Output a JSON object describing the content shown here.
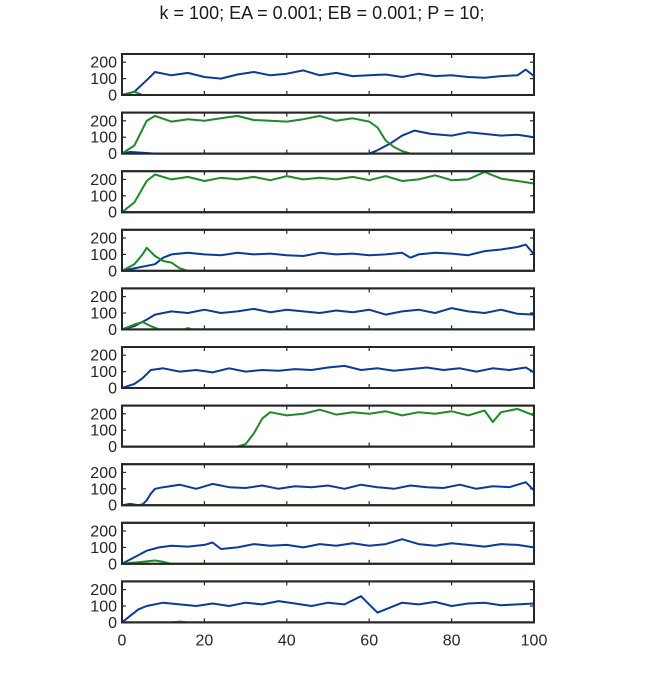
{
  "figure": {
    "title": "k = 100;  EA = 0.001;  EB = 0.001;  P = 10;"
  },
  "chart_data": {
    "type": "line",
    "title": "k = 100;  EA = 0.001;  EB = 0.001;  P = 10;",
    "xlim": [
      0,
      100
    ],
    "ylim": [
      0,
      250
    ],
    "x_ticks": [
      0,
      20,
      40,
      60,
      80,
      100
    ],
    "y_ticks": [
      0,
      100,
      200
    ],
    "grid": false,
    "series_colors": {
      "blue": "#0b3a9c",
      "green": "#1e8a28"
    },
    "panels": [
      {
        "blue": [
          [
            0,
            0
          ],
          [
            3,
            20
          ],
          [
            6,
            90
          ],
          [
            8,
            140
          ],
          [
            12,
            120
          ],
          [
            16,
            135
          ],
          [
            20,
            110
          ],
          [
            24,
            100
          ],
          [
            28,
            125
          ],
          [
            32,
            140
          ],
          [
            36,
            120
          ],
          [
            40,
            130
          ],
          [
            44,
            150
          ],
          [
            48,
            120
          ],
          [
            52,
            135
          ],
          [
            56,
            115
          ],
          [
            60,
            120
          ],
          [
            64,
            125
          ],
          [
            68,
            110
          ],
          [
            72,
            130
          ],
          [
            76,
            115
          ],
          [
            80,
            120
          ],
          [
            84,
            110
          ],
          [
            88,
            105
          ],
          [
            92,
            115
          ],
          [
            96,
            120
          ],
          [
            98,
            155
          ],
          [
            100,
            115
          ]
        ],
        "green": [
          [
            0,
            0
          ],
          [
            3,
            20
          ],
          [
            5,
            0
          ],
          [
            100,
            0
          ]
        ]
      },
      {
        "blue": [
          [
            0,
            0
          ],
          [
            2,
            10
          ],
          [
            5,
            5
          ],
          [
            8,
            0
          ],
          [
            60,
            0
          ],
          [
            62,
            20
          ],
          [
            65,
            60
          ],
          [
            68,
            110
          ],
          [
            71,
            140
          ],
          [
            75,
            120
          ],
          [
            80,
            110
          ],
          [
            84,
            130
          ],
          [
            88,
            120
          ],
          [
            92,
            110
          ],
          [
            96,
            115
          ],
          [
            100,
            100
          ]
        ],
        "green": [
          [
            0,
            0
          ],
          [
            3,
            50
          ],
          [
            6,
            200
          ],
          [
            8,
            230
          ],
          [
            12,
            195
          ],
          [
            16,
            210
          ],
          [
            20,
            200
          ],
          [
            24,
            215
          ],
          [
            28,
            230
          ],
          [
            32,
            205
          ],
          [
            36,
            200
          ],
          [
            40,
            195
          ],
          [
            44,
            210
          ],
          [
            48,
            230
          ],
          [
            52,
            200
          ],
          [
            56,
            215
          ],
          [
            60,
            195
          ],
          [
            62,
            160
          ],
          [
            64,
            80
          ],
          [
            66,
            40
          ],
          [
            68,
            15
          ],
          [
            70,
            0
          ],
          [
            100,
            0
          ]
        ]
      },
      {
        "blue": [
          [
            0,
            0
          ],
          [
            100,
            0
          ]
        ],
        "green": [
          [
            0,
            0
          ],
          [
            3,
            60
          ],
          [
            6,
            190
          ],
          [
            8,
            230
          ],
          [
            12,
            200
          ],
          [
            16,
            215
          ],
          [
            20,
            190
          ],
          [
            24,
            210
          ],
          [
            28,
            200
          ],
          [
            32,
            215
          ],
          [
            36,
            195
          ],
          [
            40,
            220
          ],
          [
            44,
            200
          ],
          [
            48,
            210
          ],
          [
            52,
            200
          ],
          [
            56,
            215
          ],
          [
            60,
            195
          ],
          [
            64,
            220
          ],
          [
            68,
            190
          ],
          [
            72,
            200
          ],
          [
            76,
            225
          ],
          [
            80,
            195
          ],
          [
            84,
            200
          ],
          [
            88,
            245
          ],
          [
            92,
            205
          ],
          [
            96,
            190
          ],
          [
            100,
            175
          ]
        ]
      },
      {
        "blue": [
          [
            0,
            0
          ],
          [
            4,
            20
          ],
          [
            8,
            40
          ],
          [
            10,
            80
          ],
          [
            12,
            100
          ],
          [
            16,
            110
          ],
          [
            20,
            100
          ],
          [
            24,
            95
          ],
          [
            28,
            110
          ],
          [
            32,
            100
          ],
          [
            36,
            105
          ],
          [
            40,
            95
          ],
          [
            44,
            90
          ],
          [
            48,
            110
          ],
          [
            52,
            100
          ],
          [
            56,
            105
          ],
          [
            60,
            95
          ],
          [
            64,
            100
          ],
          [
            68,
            110
          ],
          [
            70,
            80
          ],
          [
            72,
            100
          ],
          [
            76,
            110
          ],
          [
            80,
            105
          ],
          [
            84,
            95
          ],
          [
            88,
            120
          ],
          [
            92,
            130
          ],
          [
            96,
            145
          ],
          [
            98,
            160
          ],
          [
            100,
            100
          ]
        ],
        "green": [
          [
            0,
            0
          ],
          [
            3,
            40
          ],
          [
            5,
            100
          ],
          [
            6,
            140
          ],
          [
            8,
            90
          ],
          [
            10,
            60
          ],
          [
            12,
            50
          ],
          [
            14,
            15
          ],
          [
            16,
            0
          ],
          [
            100,
            0
          ]
        ]
      },
      {
        "blue": [
          [
            0,
            0
          ],
          [
            3,
            20
          ],
          [
            6,
            60
          ],
          [
            8,
            90
          ],
          [
            12,
            110
          ],
          [
            16,
            100
          ],
          [
            20,
            120
          ],
          [
            24,
            100
          ],
          [
            28,
            110
          ],
          [
            32,
            125
          ],
          [
            36,
            105
          ],
          [
            40,
            120
          ],
          [
            44,
            110
          ],
          [
            48,
            100
          ],
          [
            52,
            115
          ],
          [
            56,
            105
          ],
          [
            60,
            120
          ],
          [
            64,
            90
          ],
          [
            68,
            110
          ],
          [
            72,
            120
          ],
          [
            76,
            100
          ],
          [
            80,
            130
          ],
          [
            84,
            110
          ],
          [
            88,
            100
          ],
          [
            92,
            120
          ],
          [
            96,
            95
          ],
          [
            100,
            90
          ]
        ],
        "green": [
          [
            0,
            0
          ],
          [
            3,
            30
          ],
          [
            5,
            45
          ],
          [
            7,
            20
          ],
          [
            9,
            0
          ],
          [
            15,
            0
          ],
          [
            16,
            8
          ],
          [
            17,
            0
          ],
          [
            100,
            0
          ]
        ]
      },
      {
        "blue": [
          [
            0,
            0
          ],
          [
            3,
            25
          ],
          [
            5,
            60
          ],
          [
            7,
            110
          ],
          [
            10,
            120
          ],
          [
            14,
            100
          ],
          [
            18,
            110
          ],
          [
            22,
            95
          ],
          [
            26,
            120
          ],
          [
            30,
            100
          ],
          [
            34,
            110
          ],
          [
            38,
            105
          ],
          [
            42,
            115
          ],
          [
            46,
            110
          ],
          [
            50,
            125
          ],
          [
            54,
            135
          ],
          [
            58,
            110
          ],
          [
            62,
            120
          ],
          [
            66,
            105
          ],
          [
            70,
            115
          ],
          [
            74,
            125
          ],
          [
            78,
            110
          ],
          [
            82,
            120
          ],
          [
            86,
            100
          ],
          [
            90,
            120
          ],
          [
            94,
            110
          ],
          [
            98,
            125
          ],
          [
            100,
            95
          ]
        ],
        "green": [
          [
            0,
            0
          ],
          [
            100,
            0
          ]
        ]
      },
      {
        "blue": [
          [
            0,
            0
          ],
          [
            100,
            0
          ]
        ],
        "green": [
          [
            0,
            0
          ],
          [
            28,
            0
          ],
          [
            30,
            15
          ],
          [
            32,
            80
          ],
          [
            34,
            170
          ],
          [
            36,
            210
          ],
          [
            40,
            190
          ],
          [
            44,
            200
          ],
          [
            48,
            225
          ],
          [
            52,
            195
          ],
          [
            56,
            210
          ],
          [
            60,
            200
          ],
          [
            64,
            215
          ],
          [
            68,
            190
          ],
          [
            72,
            210
          ],
          [
            76,
            200
          ],
          [
            80,
            215
          ],
          [
            84,
            190
          ],
          [
            88,
            220
          ],
          [
            90,
            150
          ],
          [
            92,
            210
          ],
          [
            96,
            230
          ],
          [
            100,
            190
          ]
        ]
      },
      {
        "blue": [
          [
            0,
            0
          ],
          [
            2,
            8
          ],
          [
            4,
            0
          ],
          [
            5,
            5
          ],
          [
            6,
            30
          ],
          [
            7,
            70
          ],
          [
            8,
            100
          ],
          [
            10,
            110
          ],
          [
            14,
            125
          ],
          [
            18,
            100
          ],
          [
            22,
            130
          ],
          [
            26,
            110
          ],
          [
            30,
            105
          ],
          [
            34,
            120
          ],
          [
            38,
            100
          ],
          [
            42,
            115
          ],
          [
            46,
            110
          ],
          [
            50,
            120
          ],
          [
            54,
            100
          ],
          [
            58,
            125
          ],
          [
            62,
            110
          ],
          [
            66,
            100
          ],
          [
            70,
            120
          ],
          [
            74,
            110
          ],
          [
            78,
            105
          ],
          [
            82,
            125
          ],
          [
            86,
            100
          ],
          [
            90,
            115
          ],
          [
            94,
            110
          ],
          [
            98,
            140
          ],
          [
            100,
            90
          ]
        ],
        "green": [
          [
            0,
            0
          ],
          [
            100,
            0
          ]
        ]
      },
      {
        "blue": [
          [
            0,
            0
          ],
          [
            3,
            40
          ],
          [
            6,
            80
          ],
          [
            9,
            100
          ],
          [
            12,
            110
          ],
          [
            16,
            105
          ],
          [
            20,
            115
          ],
          [
            22,
            130
          ],
          [
            24,
            90
          ],
          [
            28,
            100
          ],
          [
            32,
            120
          ],
          [
            36,
            110
          ],
          [
            40,
            115
          ],
          [
            44,
            100
          ],
          [
            48,
            120
          ],
          [
            52,
            110
          ],
          [
            56,
            125
          ],
          [
            60,
            110
          ],
          [
            64,
            120
          ],
          [
            68,
            150
          ],
          [
            72,
            120
          ],
          [
            76,
            110
          ],
          [
            80,
            125
          ],
          [
            84,
            115
          ],
          [
            88,
            105
          ],
          [
            92,
            120
          ],
          [
            96,
            115
          ],
          [
            100,
            100
          ]
        ],
        "green": [
          [
            0,
            0
          ],
          [
            4,
            10
          ],
          [
            8,
            20
          ],
          [
            10,
            12
          ],
          [
            12,
            0
          ],
          [
            100,
            0
          ]
        ]
      },
      {
        "blue": [
          [
            0,
            0
          ],
          [
            2,
            40
          ],
          [
            4,
            80
          ],
          [
            6,
            100
          ],
          [
            10,
            120
          ],
          [
            14,
            110
          ],
          [
            18,
            100
          ],
          [
            22,
            115
          ],
          [
            26,
            100
          ],
          [
            30,
            120
          ],
          [
            34,
            110
          ],
          [
            38,
            130
          ],
          [
            42,
            115
          ],
          [
            46,
            100
          ],
          [
            50,
            120
          ],
          [
            54,
            110
          ],
          [
            58,
            160
          ],
          [
            60,
            110
          ],
          [
            62,
            60
          ],
          [
            64,
            80
          ],
          [
            68,
            120
          ],
          [
            72,
            110
          ],
          [
            76,
            125
          ],
          [
            80,
            100
          ],
          [
            84,
            115
          ],
          [
            88,
            120
          ],
          [
            92,
            105
          ],
          [
            96,
            110
          ],
          [
            100,
            115
          ]
        ],
        "green": [
          [
            0,
            0
          ],
          [
            12,
            0
          ],
          [
            14,
            5
          ],
          [
            16,
            0
          ],
          [
            100,
            0
          ]
        ]
      }
    ]
  }
}
